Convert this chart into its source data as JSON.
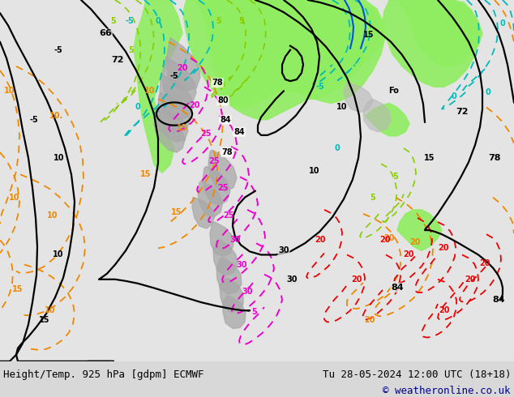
{
  "title_left": "Height/Temp. 925 hPa [gdpm] ECMWF",
  "title_right": "Tu 28-05-2024 12:00 UTC (18+18)",
  "copyright": "© weatheronline.co.uk",
  "figsize": [
    6.34,
    4.9
  ],
  "dpi": 100,
  "bg_color": "#d8d8d8",
  "land_gray": "#c8c8c8",
  "ocean_light": "#e8e8e8",
  "green_fill": "#90ee60",
  "mountain_gray": "#a8a8a8",
  "black": "#000000",
  "orange": "#ee8800",
  "cyan": "#00bbbb",
  "lime": "#88cc00",
  "red": "#ee0000",
  "magenta": "#ee00cc",
  "blue": "#0055dd",
  "navy": "#000088"
}
